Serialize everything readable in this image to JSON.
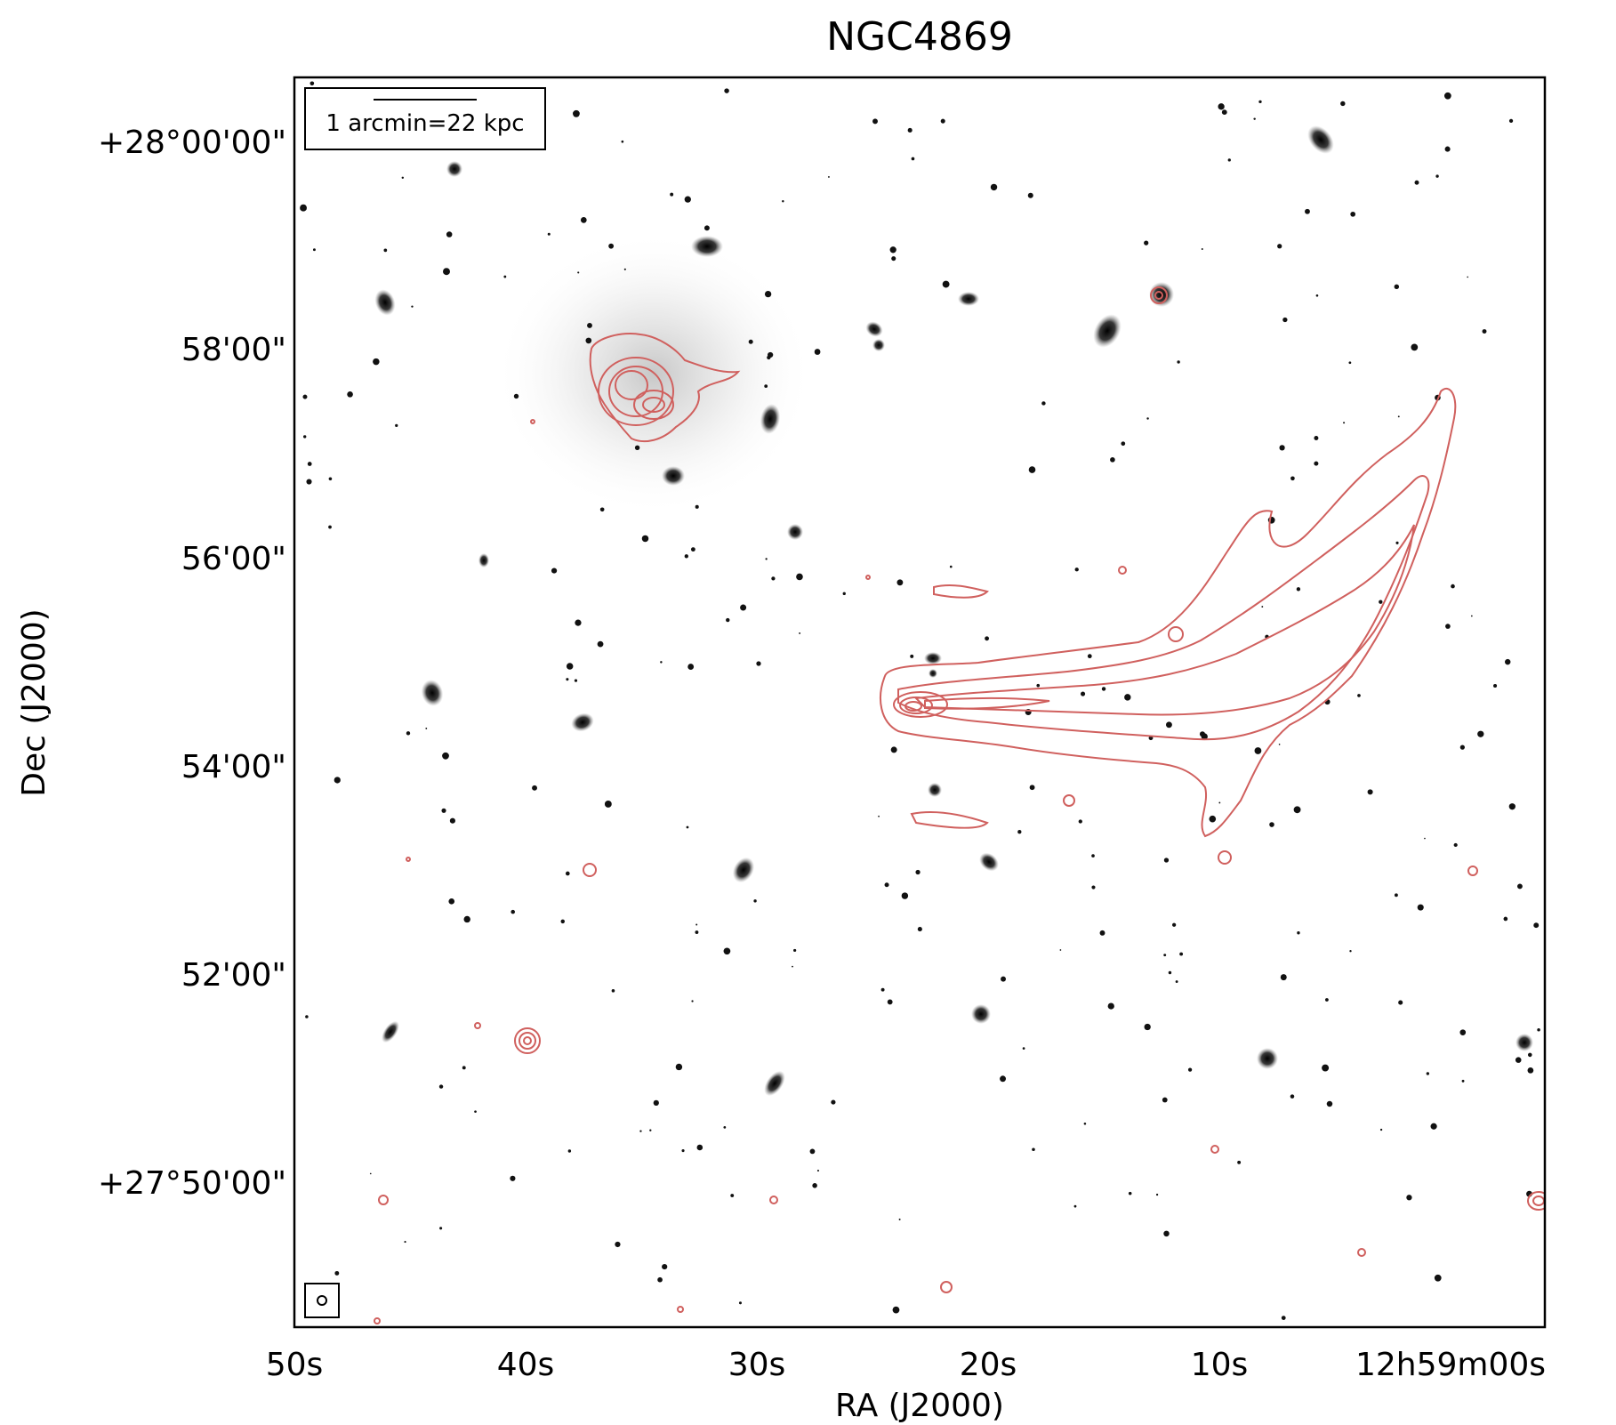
{
  "title": "NGC4869",
  "xlabel": "RA (J2000)",
  "ylabel": "Dec (J2000)",
  "x_ticks": [
    "50s",
    "40s",
    "30s",
    "20s",
    "10s",
    "12h59m00s"
  ],
  "y_ticks": [
    "+28°00'00\"",
    "58'00\"",
    "56'00\"",
    "54'00\"",
    "52'00\"",
    "+27°50'00\""
  ],
  "scale_bar": {
    "label": "1 arcmin=22 kpc"
  },
  "colors": {
    "contour": "#d0605e",
    "frame": "#000000",
    "sources": "#111111",
    "background": "#ffffff"
  },
  "image": {
    "description_type": "optical image (inverted greyscale) with radio contours",
    "contour_color": "#d0605e",
    "beam_marker": "circle-in-box lower-left"
  }
}
